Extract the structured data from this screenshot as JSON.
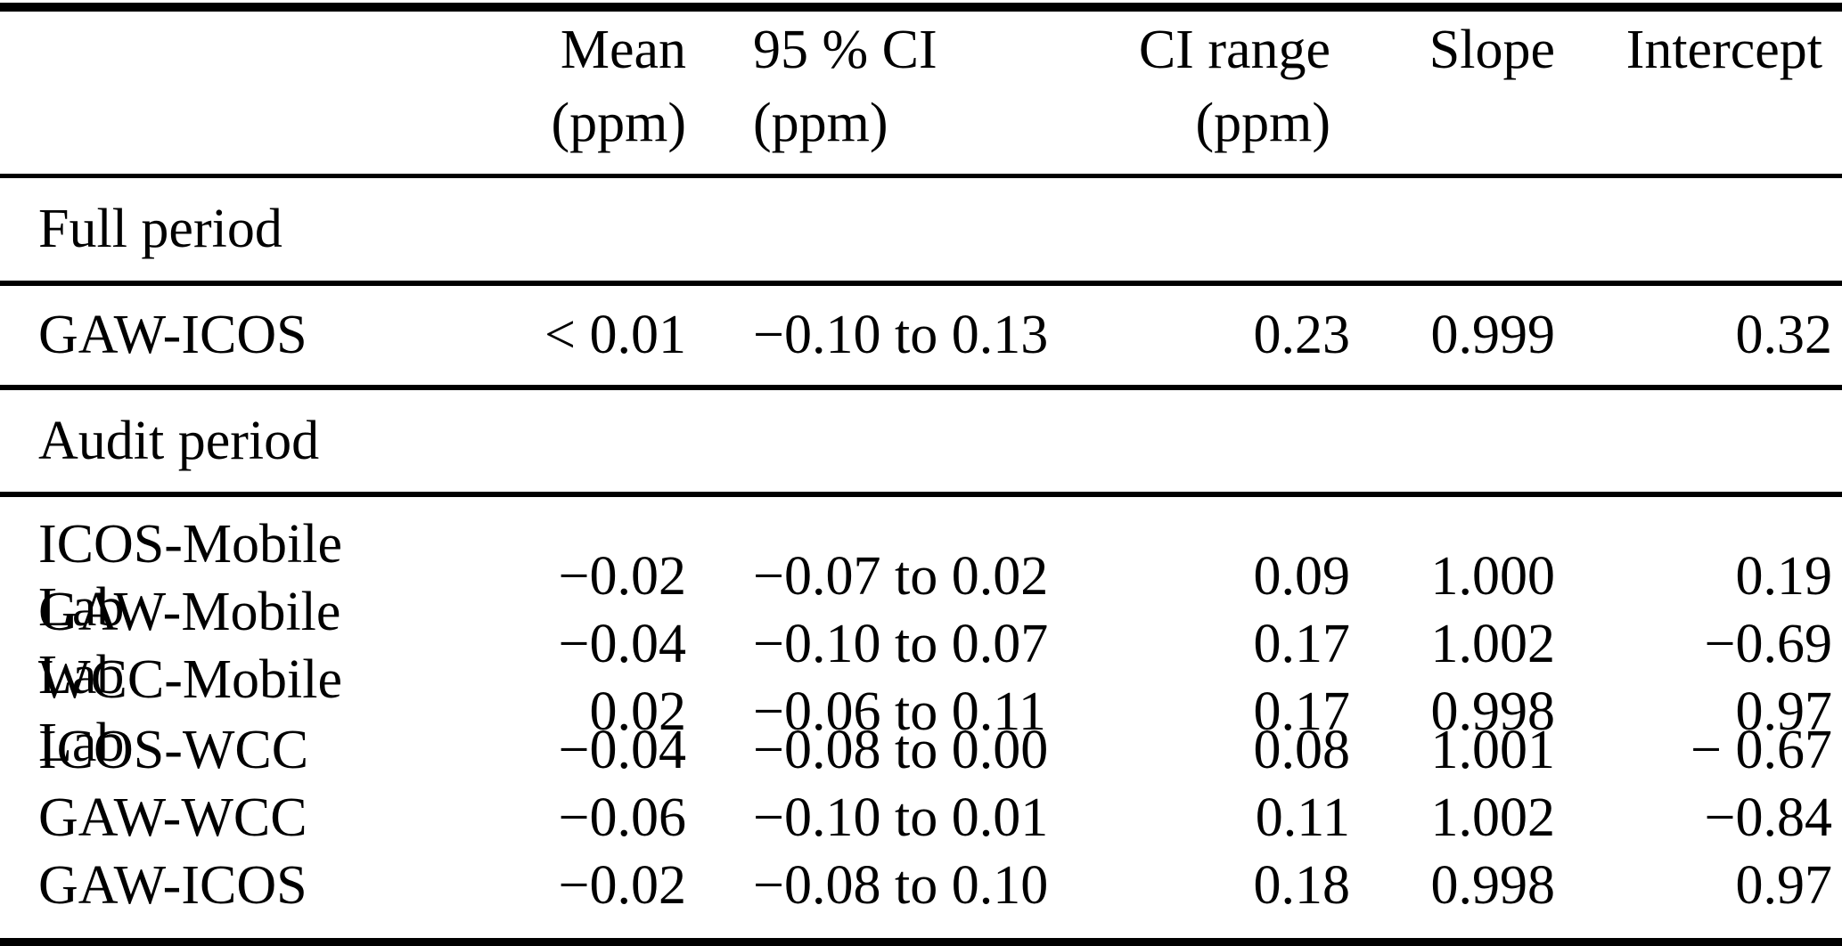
{
  "table": {
    "header": {
      "mean_line1": "Mean",
      "mean_line2": "(ppm)",
      "ci_line1": "95 % CI",
      "ci_line2": "(ppm)",
      "ci_range_line1": "CI range",
      "ci_range_line2": "(ppm)",
      "slope": "Slope",
      "intercept": "Intercept"
    },
    "sections": [
      {
        "title": "Full period",
        "rows": [
          {
            "label": "GAW-ICOS",
            "mean": "< 0.01",
            "ci": "−0.10 to 0.13",
            "ci_range": "0.23",
            "slope": "0.999",
            "intercept": "0.32"
          }
        ]
      },
      {
        "title": "Audit period",
        "rows": [
          {
            "label": "ICOS-Mobile Lab",
            "mean": "−0.02",
            "ci": "−0.07 to 0.02",
            "ci_range": "0.09",
            "slope": "1.000",
            "intercept": "0.19"
          },
          {
            "label": "GAW-Mobile Lab",
            "mean": "−0.04",
            "ci": "−0.10 to 0.07",
            "ci_range": "0.17",
            "slope": "1.002",
            "intercept": "−0.69"
          },
          {
            "label": "WCC-Mobile Lab",
            "mean": "0.02",
            "ci": "−0.06 to 0.11",
            "ci_range": "0.17",
            "slope": "0.998",
            "intercept": "0.97"
          },
          {
            "label": "ICOS-WCC",
            "mean": "−0.04",
            "ci": "−0.08 to 0.00",
            "ci_range": "0.08",
            "slope": "1.001",
            "intercept": "− 0.67"
          },
          {
            "label": "GAW-WCC",
            "mean": "−0.06",
            "ci": "−0.10 to 0.01",
            "ci_range": "0.11",
            "slope": "1.002",
            "intercept": "−0.84"
          },
          {
            "label": "GAW-ICOS",
            "mean": "−0.02",
            "ci": "−0.08 to 0.10",
            "ci_range": "0.18",
            "slope": "0.998",
            "intercept": "0.97"
          }
        ]
      }
    ],
    "colors": {
      "text": "#000000",
      "background": "#ffffff",
      "rule": "#000000"
    }
  }
}
